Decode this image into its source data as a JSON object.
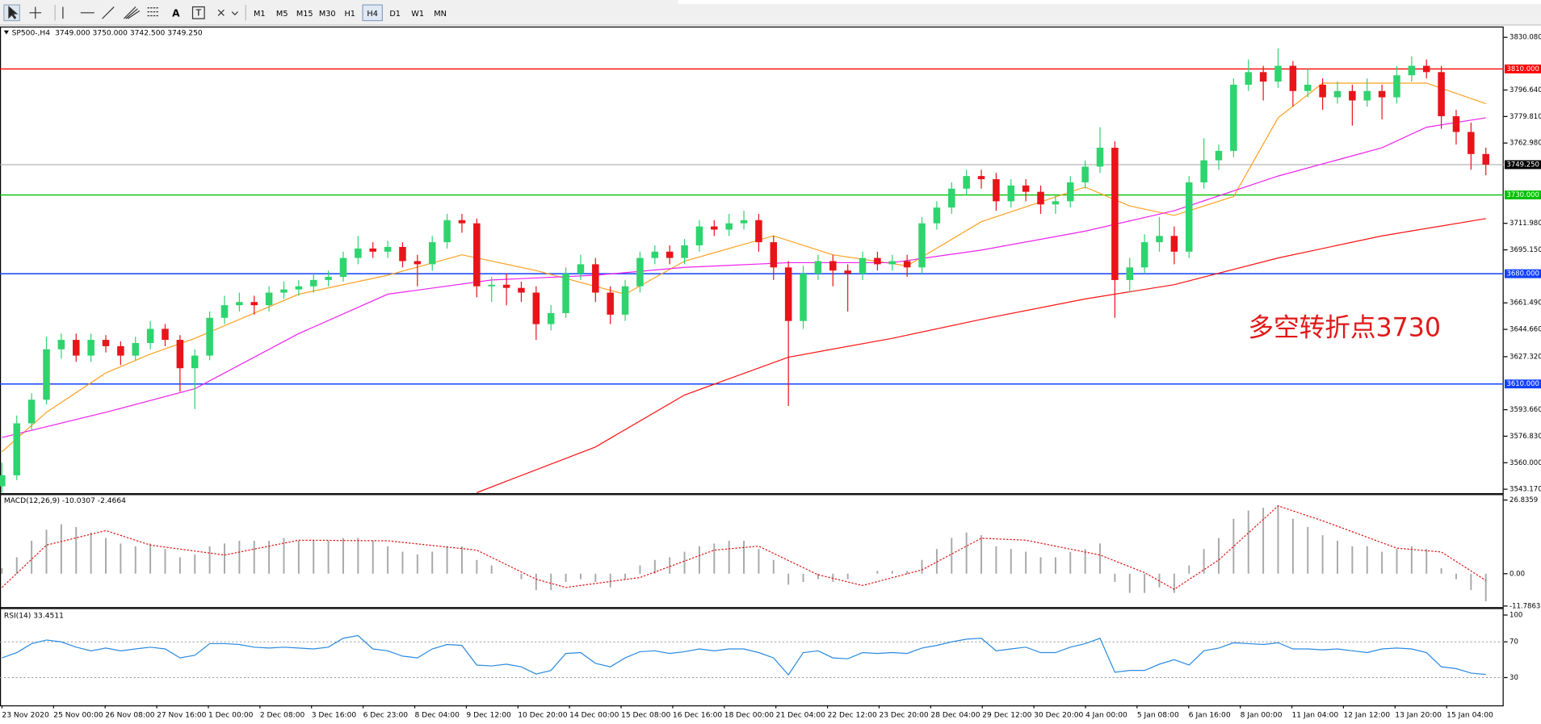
{
  "toolbar": {
    "text_tool": "A",
    "label_tool": "T",
    "timeframes": [
      "M1",
      "M5",
      "M15",
      "M30",
      "H1",
      "H4",
      "D1",
      "W1",
      "MN"
    ],
    "active": "H4"
  },
  "chart_data": [
    {
      "type": "candlestick",
      "title": "SP500-,H4",
      "subtitle": "3749.000 3750.000 3742.500 3749.250",
      "ohlc": [
        [
          3545,
          3560,
          3541,
          3552
        ],
        [
          3552,
          3590,
          3549,
          3585
        ],
        [
          3585,
          3604,
          3581,
          3600
        ],
        [
          3600,
          3640,
          3597,
          3632
        ],
        [
          3632,
          3642,
          3626,
          3638
        ],
        [
          3638,
          3642,
          3624,
          3628
        ],
        [
          3628,
          3642,
          3624,
          3638
        ],
        [
          3638,
          3641,
          3630,
          3634
        ],
        [
          3634,
          3637,
          3622,
          3628
        ],
        [
          3628,
          3640,
          3625,
          3636
        ],
        [
          3636,
          3650,
          3632,
          3645
        ],
        [
          3645,
          3648,
          3634,
          3638
        ],
        [
          3638,
          3641,
          3605,
          3620
        ],
        [
          3620,
          3632,
          3594,
          3628
        ],
        [
          3628,
          3656,
          3625,
          3652
        ],
        [
          3652,
          3666,
          3648,
          3660
        ],
        [
          3660,
          3668,
          3656,
          3662
        ],
        [
          3662,
          3666,
          3654,
          3660
        ],
        [
          3660,
          3672,
          3656,
          3668
        ],
        [
          3668,
          3675,
          3664,
          3670
        ],
        [
          3670,
          3676,
          3666,
          3672
        ],
        [
          3672,
          3680,
          3668,
          3676
        ],
        [
          3676,
          3682,
          3672,
          3678
        ],
        [
          3678,
          3694,
          3675,
          3690
        ],
        [
          3690,
          3704,
          3686,
          3696
        ],
        [
          3696,
          3700,
          3690,
          3694
        ],
        [
          3694,
          3701,
          3690,
          3697
        ],
        [
          3697,
          3700,
          3684,
          3688
        ],
        [
          3688,
          3692,
          3672,
          3686
        ],
        [
          3686,
          3704,
          3682,
          3700
        ],
        [
          3700,
          3718,
          3696,
          3714
        ],
        [
          3714,
          3718,
          3706,
          3712
        ],
        [
          3712,
          3715,
          3665,
          3672
        ],
        [
          3672,
          3678,
          3662,
          3673
        ],
        [
          3673,
          3680,
          3660,
          3671
        ],
        [
          3671,
          3675,
          3662,
          3668
        ],
        [
          3668,
          3672,
          3638,
          3648
        ],
        [
          3648,
          3660,
          3644,
          3655
        ],
        [
          3655,
          3684,
          3652,
          3680
        ],
        [
          3680,
          3692,
          3676,
          3686
        ],
        [
          3686,
          3690,
          3662,
          3668
        ],
        [
          3668,
          3672,
          3648,
          3654
        ],
        [
          3654,
          3676,
          3650,
          3672
        ],
        [
          3672,
          3694,
          3668,
          3690
        ],
        [
          3690,
          3698,
          3686,
          3694
        ],
        [
          3694,
          3698,
          3686,
          3690
        ],
        [
          3690,
          3702,
          3686,
          3698
        ],
        [
          3698,
          3714,
          3694,
          3710
        ],
        [
          3710,
          3714,
          3704,
          3708
        ],
        [
          3708,
          3718,
          3704,
          3712
        ],
        [
          3712,
          3720,
          3708,
          3714
        ],
        [
          3714,
          3718,
          3694,
          3700
        ],
        [
          3700,
          3704,
          3676,
          3684
        ],
        [
          3684,
          3688,
          3596,
          3650
        ],
        [
          3650,
          3685,
          3645,
          3680
        ],
        [
          3680,
          3692,
          3676,
          3688
        ],
        [
          3688,
          3692,
          3672,
          3682
        ],
        [
          3682,
          3686,
          3656,
          3680
        ],
        [
          3680,
          3694,
          3676,
          3690
        ],
        [
          3690,
          3694,
          3682,
          3686
        ],
        [
          3686,
          3692,
          3682,
          3688
        ],
        [
          3688,
          3692,
          3678,
          3684
        ],
        [
          3684,
          3716,
          3680,
          3712
        ],
        [
          3712,
          3726,
          3708,
          3722
        ],
        [
          3722,
          3738,
          3718,
          3734
        ],
        [
          3734,
          3746,
          3730,
          3742
        ],
        [
          3742,
          3746,
          3734,
          3740
        ],
        [
          3740,
          3744,
          3720,
          3726
        ],
        [
          3726,
          3740,
          3722,
          3736
        ],
        [
          3736,
          3740,
          3726,
          3732
        ],
        [
          3732,
          3736,
          3718,
          3724
        ],
        [
          3724,
          3730,
          3718,
          3726
        ],
        [
          3726,
          3742,
          3722,
          3738
        ],
        [
          3738,
          3752,
          3734,
          3748
        ],
        [
          3748,
          3773,
          3744,
          3760
        ],
        [
          3760,
          3764,
          3652,
          3676
        ],
        [
          3676,
          3690,
          3668,
          3684
        ],
        [
          3684,
          3705,
          3680,
          3700
        ],
        [
          3700,
          3716,
          3694,
          3704
        ],
        [
          3704,
          3710,
          3686,
          3694
        ],
        [
          3694,
          3742,
          3690,
          3738
        ],
        [
          3738,
          3766,
          3734,
          3752
        ],
        [
          3752,
          3762,
          3746,
          3758
        ],
        [
          3758,
          3804,
          3754,
          3800
        ],
        [
          3800,
          3816,
          3796,
          3808
        ],
        [
          3808,
          3812,
          3790,
          3802
        ],
        [
          3802,
          3823,
          3798,
          3812
        ],
        [
          3812,
          3815,
          3786,
          3796
        ],
        [
          3796,
          3810,
          3792,
          3800
        ],
        [
          3800,
          3804,
          3784,
          3792
        ],
        [
          3792,
          3802,
          3788,
          3796
        ],
        [
          3796,
          3800,
          3774,
          3790
        ],
        [
          3790,
          3804,
          3786,
          3796
        ],
        [
          3796,
          3800,
          3778,
          3792
        ],
        [
          3792,
          3812,
          3788,
          3806
        ],
        [
          3806,
          3818,
          3802,
          3812
        ],
        [
          3812,
          3816,
          3804,
          3808
        ],
        [
          3808,
          3812,
          3772,
          3780
        ],
        [
          3780,
          3784,
          3762,
          3770
        ],
        [
          3770,
          3776,
          3746,
          3756
        ],
        [
          3756,
          3760,
          3742.5,
          3749.25
        ]
      ],
      "colors": {
        "up": "#2ed46e",
        "down": "#e8141a"
      },
      "xlim": [
        -0.13,
        101.2
      ],
      "ylim": [
        3540.68,
        3836.94
      ],
      "yticks": [
        {
          "value": 3830.08,
          "label": "3830.080"
        },
        {
          "value": 3796.64,
          "label": "3796.640"
        },
        {
          "value": 3779.81,
          "label": "3779.810"
        },
        {
          "value": 3762.98,
          "label": "3762.980"
        },
        {
          "value": 3711.98,
          "label": "3711.980"
        },
        {
          "value": 3695.15,
          "label": "3695.150"
        },
        {
          "value": 3661.49,
          "label": "3661.490"
        },
        {
          "value": 3644.66,
          "label": "3644.660"
        },
        {
          "value": 3627.32,
          "label": "3627.320"
        },
        {
          "value": 3593.66,
          "label": "3593.660"
        },
        {
          "value": 3576.83,
          "label": "3576.830"
        },
        {
          "value": 3560,
          "label": "3560.000"
        },
        {
          "value": 3543.17,
          "label": "3543.170"
        }
      ],
      "moving_averages": [
        {
          "color": "#ffa020",
          "x": [
            0,
            3,
            7,
            10,
            13,
            20,
            26,
            31,
            36,
            42,
            46,
            52,
            56,
            61,
            66,
            73,
            76,
            79,
            83,
            86,
            89,
            96,
            100
          ],
          "values": [
            3567,
            3592,
            3617,
            3629,
            3639,
            3667,
            3679,
            3692,
            3682,
            3667,
            3688,
            3704,
            3692,
            3685,
            3713,
            3735,
            3723,
            3717,
            3729,
            3779,
            3801,
            3801,
            3788
          ]
        },
        {
          "color": "#ee22ee",
          "x": [
            0,
            7,
            13,
            20,
            26,
            33,
            40,
            46,
            53,
            60,
            66,
            73,
            79,
            86,
            93,
            96,
            100
          ],
          "values": [
            3576,
            3592,
            3607,
            3642,
            3667,
            3676,
            3679,
            3684,
            3687,
            3687,
            3695,
            3707,
            3720,
            3742,
            3760,
            3773,
            3779
          ]
        },
        {
          "color": "#ff1010",
          "x": [
            32,
            40,
            46,
            53,
            60,
            66,
            73,
            79,
            86,
            93,
            100
          ],
          "values": [
            3541,
            3570,
            3603,
            3627,
            3639,
            3651,
            3664,
            3673,
            3690,
            3704,
            3715
          ]
        }
      ],
      "levels": [
        {
          "value": 3810,
          "label": "3810.000",
          "color": "#ff0000"
        },
        {
          "value": 3730,
          "label": "3730.000",
          "color": "#00c000"
        },
        {
          "value": 3680,
          "label": "3680.000",
          "color": "#1040ff"
        },
        {
          "value": 3610,
          "label": "3610.000",
          "color": "#1040ff"
        }
      ],
      "price": {
        "value": 3749.25,
        "label": "3749.250"
      },
      "annotation": "多空转折点3730",
      "annotation_color": "#e01818",
      "xlabels": [
        "23 Nov 2020",
        "25 Nov 00:00",
        "26 Nov 08:00",
        "27 Nov 16:00",
        "1 Dec 00:00",
        "2 Dec 08:00",
        "3 Dec 16:00",
        "6 Dec 23:00",
        "8 Dec 04:00",
        "9 Dec 12:00",
        "10 Dec 20:00",
        "14 Dec 00:00",
        "15 Dec 08:00",
        "16 Dec 16:00",
        "18 Dec 00:00",
        "21 Dec 04:00",
        "22 Dec 12:00",
        "23 Dec 20:00",
        "28 Dec 04:00",
        "29 Dec 12:00",
        "30 Dec 20:00",
        "4 Jan 00:00",
        "5 Jan 08:00",
        "6 Jan 16:00",
        "8 Jan 00:00",
        "11 Jan 04:00",
        "12 Jan 12:00",
        "13 Jan 20:00",
        "15 Jan 04:00"
      ]
    },
    {
      "type": "macd",
      "title": "MACD(12,26,9) -10.0307 -2.4664",
      "histogram": [
        2,
        6,
        12,
        16,
        18,
        17,
        15,
        13,
        11,
        10,
        11,
        9,
        6,
        7,
        10,
        11,
        12,
        12,
        12,
        13,
        12,
        12,
        12,
        13,
        13,
        12,
        10,
        8,
        7,
        8,
        10,
        10,
        5,
        3,
        0,
        -2,
        -6,
        -6,
        -3,
        -2,
        -3,
        -5,
        -2,
        3,
        5,
        6,
        8,
        10,
        11,
        12,
        12,
        9,
        5,
        -4,
        -3,
        -2,
        -3,
        -2,
        0,
        1,
        1,
        1,
        5,
        9,
        13,
        15,
        14,
        10,
        9,
        8,
        6,
        6,
        8,
        9,
        11,
        -3,
        -7,
        -7,
        -5,
        -7,
        3,
        9,
        13,
        20,
        23,
        24,
        25,
        20,
        17,
        14,
        12,
        10,
        10,
        8,
        9,
        10,
        9,
        2,
        -2,
        -6,
        -10.0307
      ],
      "histogram_color": "#a8a8a8",
      "signal": {
        "x": [
          0,
          3,
          7,
          10,
          15,
          20,
          26,
          32,
          36,
          38,
          43,
          48,
          51,
          55,
          58,
          62,
          66,
          69,
          74,
          77,
          79,
          82,
          86,
          89,
          94,
          97,
          100
        ],
        "values": [
          -5,
          10.4,
          15.7,
          10.4,
          6.8,
          12.2,
          12,
          8.6,
          -2,
          -5,
          -1.4,
          8.6,
          10,
          -0.4,
          -4.3,
          1.4,
          12.9,
          12.2,
          6.8,
          0.4,
          -5.7,
          5,
          24.7,
          19.3,
          9.3,
          7.9,
          -2.4664
        ]
      },
      "signal_color": "#e01818",
      "xlim": [
        -0.13,
        101.2
      ],
      "ylim": [
        -12.17,
        28.98
      ],
      "yticks": [
        26.8359,
        {
          "value": 0,
          "label": "0.00"
        },
        -11.7863
      ]
    },
    {
      "type": "line",
      "title": "RSI(14) 33.4511",
      "values": [
        52,
        58,
        68,
        72,
        70,
        64,
        60,
        63,
        60,
        62,
        64,
        62,
        52,
        55,
        68,
        68,
        67,
        64,
        63,
        64,
        63,
        62,
        64,
        74,
        77,
        62,
        60,
        54,
        52,
        62,
        67,
        66,
        44,
        43,
        45,
        42,
        34,
        38,
        57,
        58,
        46,
        42,
        52,
        59,
        60,
        57,
        59,
        62,
        60,
        62,
        62,
        58,
        52,
        33,
        58,
        60,
        52,
        51,
        58,
        57,
        58,
        57,
        63,
        66,
        70,
        73,
        74,
        60,
        62,
        64,
        58,
        58,
        64,
        68,
        74,
        36,
        38,
        38,
        45,
        50,
        44,
        60,
        63,
        69,
        68,
        67,
        69,
        62,
        62,
        61,
        62,
        60,
        58,
        62,
        63,
        62,
        58,
        42,
        40,
        35,
        33.4511
      ],
      "color": "#2a8ae0",
      "xlim": [
        -0.13,
        101.2
      ],
      "ylim": [
        -1.1,
        107.8
      ],
      "yticks": [
        100,
        70,
        30
      ],
      "levels": [
        70,
        30
      ]
    }
  ]
}
